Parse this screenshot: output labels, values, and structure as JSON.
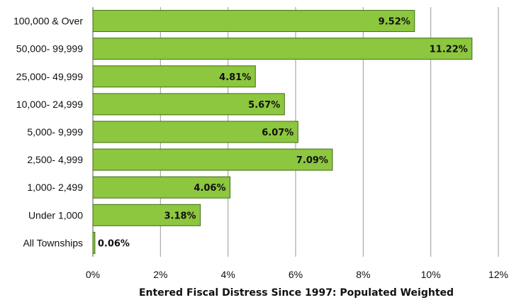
{
  "chart_data": {
    "type": "bar",
    "orientation": "horizontal",
    "categories": [
      "100,000 & Over",
      "50,000- 99,999",
      "25,000- 49,999",
      "10,000- 24,999",
      "5,000- 9,999",
      "2,500- 4,999",
      "1,000- 2,499",
      "Under 1,000",
      "All Townships"
    ],
    "values": [
      9.52,
      11.22,
      4.81,
      5.67,
      6.07,
      7.09,
      4.06,
      3.18,
      0.06
    ],
    "data_labels": [
      "9.52%",
      "11.22%",
      "4.81%",
      "5.67%",
      "6.07%",
      "7.09%",
      "4.06%",
      "3.18%",
      "0.06%"
    ],
    "xlabel": "Entered Fiscal Distress Since 1997: Populated Weighted",
    "ylabel": "",
    "xlim": [
      0,
      12
    ],
    "x_ticks": [
      "0%",
      "2%",
      "4%",
      "6%",
      "8%",
      "10%",
      "12%"
    ],
    "grid": "vertical",
    "legend": "none",
    "colors": {
      "bar_fill": "#8dc63f",
      "bar_stroke": "#3f6e14",
      "grid": "#9a9a9a"
    }
  }
}
